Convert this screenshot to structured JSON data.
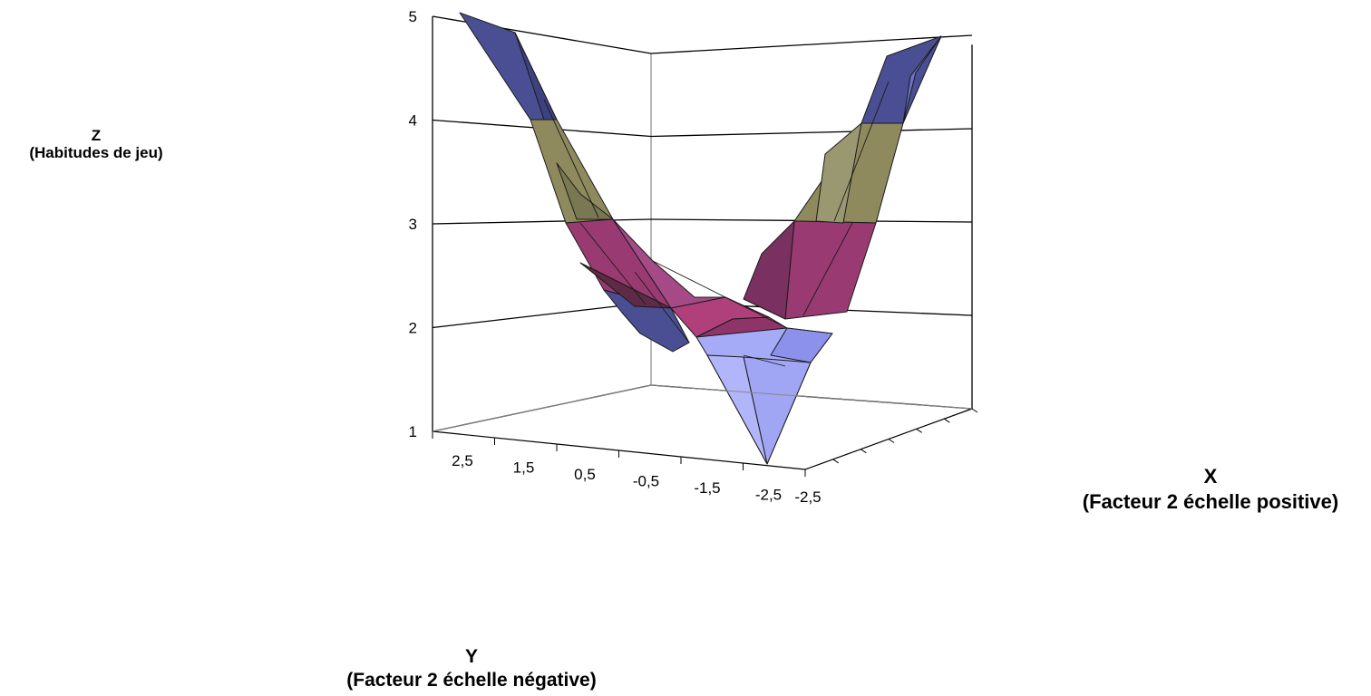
{
  "chart_data": {
    "type": "surface-3d",
    "z_axis": {
      "label_letter": "Z",
      "label_text": "(Habitudes de jeu)",
      "ticks": [
        "1",
        "2",
        "3",
        "4",
        "5"
      ],
      "range": [
        1,
        5
      ]
    },
    "x_axis": {
      "label_letter": "X",
      "label_text": "(Facteur 2 échelle positive)",
      "ticks": [
        "-2,5"
      ]
    },
    "y_axis": {
      "label_letter": "Y",
      "label_text": "(Facteur 2 échelle négative)",
      "ticks": [
        "2,5",
        "1,5",
        "0,5",
        "-0,5",
        "-1,5",
        "-2,5"
      ]
    },
    "band_colors": {
      "1-2": "#a5abf7",
      "2-3": "#9a3a72",
      "3-4": "#8e8a5e",
      "4-5": "#4a4f94"
    },
    "surface_profile_approx": {
      "y": [
        2.5,
        1.5,
        0.5,
        -0.5,
        -1.5,
        -2.5
      ],
      "z": [
        5.0,
        3.6,
        2.3,
        2.0,
        1.8,
        1.3
      ]
    },
    "grid": true,
    "legend": "none"
  }
}
